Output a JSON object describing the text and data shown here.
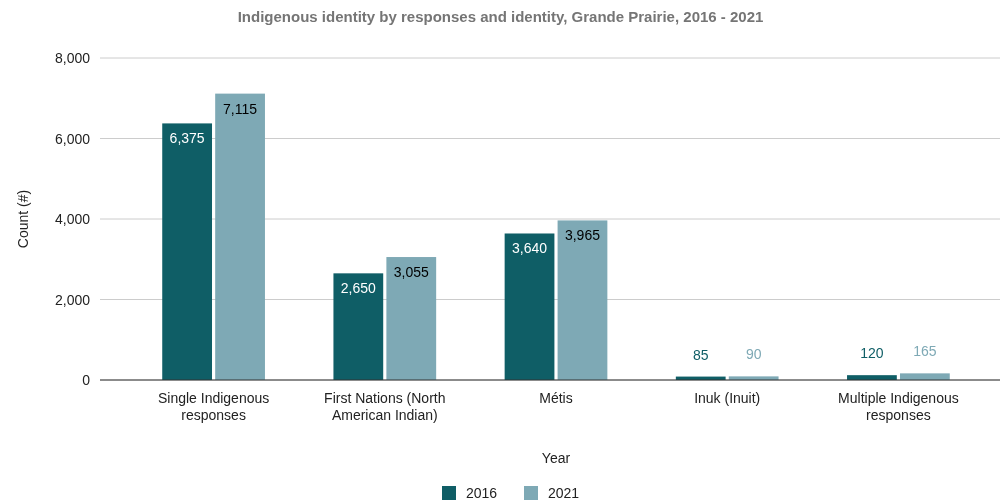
{
  "chart_data": {
    "type": "bar",
    "title": "Indigenous identity by responses and identity, Grande Prairie, 2016 - 2021",
    "xlabel": "Year",
    "ylabel": "Count (#)",
    "categories": [
      "Single Indigenous responses",
      "First Nations (North American Indian)",
      "Métis",
      "Inuk (Inuit)",
      "Multiple Indigenous responses"
    ],
    "series": [
      {
        "name": "2016",
        "color": "#0f5e66",
        "values": [
          6375,
          2650,
          3640,
          85,
          120
        ],
        "value_labels": [
          "6,375",
          "2,650",
          "3,640",
          "85",
          "120"
        ]
      },
      {
        "name": "2021",
        "color": "#7ea9b5",
        "values": [
          7115,
          3055,
          3965,
          90,
          165
        ],
        "value_labels": [
          "7,115",
          "3,055",
          "3,965",
          "90",
          "165"
        ]
      }
    ],
    "ylim": [
      0,
      8000
    ],
    "yticks": [
      0,
      {
        "value": 2000,
        "label": "2,000"
      },
      {
        "value": 4000,
        "label": "4,000"
      },
      {
        "value": 6000,
        "label": "6,000"
      },
      {
        "value": 8000,
        "label": "8,000"
      }
    ],
    "grid": "y",
    "legend": "bottom"
  }
}
